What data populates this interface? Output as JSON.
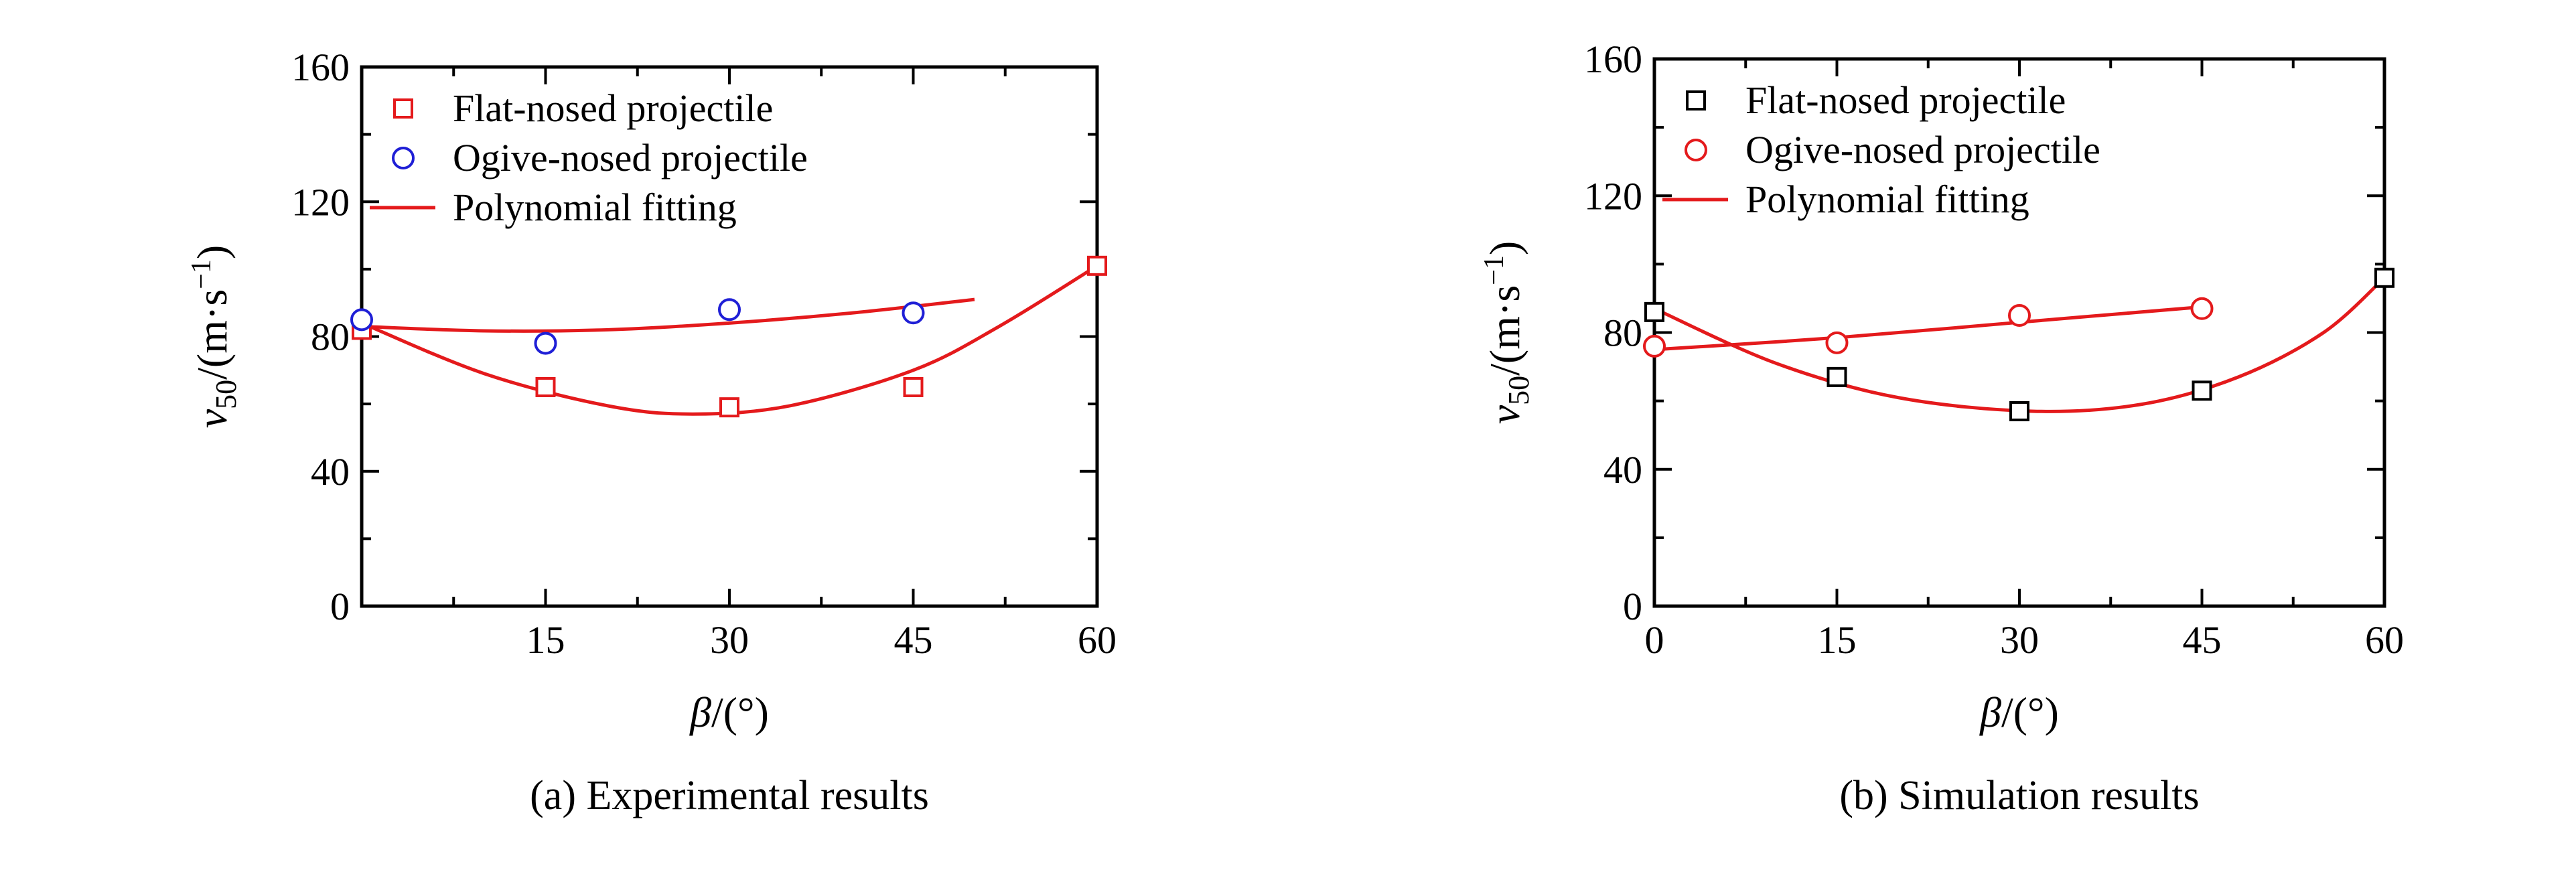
{
  "chart_data": [
    {
      "type": "scatter",
      "caption": "(a) Experimental results",
      "xlabel": {
        "var": "β",
        "unit": "/(°)"
      },
      "ylabel": {
        "var": "v",
        "sub": "50",
        "unit": "/(m·s",
        "sup": "−1",
        "close": ")"
      },
      "xlim": [
        0,
        60
      ],
      "ylim": [
        0,
        160
      ],
      "xticks": [
        15,
        30,
        45,
        60
      ],
      "yticks": [
        0,
        40,
        80,
        120,
        160
      ],
      "legend_position": "top-left",
      "series": [
        {
          "name": "Flat-nosed projectile",
          "marker": "square",
          "color": "#e41a1c",
          "points": [
            [
              0,
              82
            ],
            [
              15,
              65
            ],
            [
              30,
              59
            ],
            [
              45,
              65
            ],
            [
              60,
              101
            ]
          ]
        },
        {
          "name": "Ogive-nosed projectile",
          "marker": "circle",
          "color": "#1f1fd6",
          "points": [
            [
              0,
              85
            ],
            [
              15,
              78
            ],
            [
              30,
              88
            ],
            [
              45,
              87
            ]
          ]
        }
      ],
      "fits": [
        {
          "name": "Polynomial fitting",
          "color": "#e41a1c",
          "points": [
            [
              0,
              84
            ],
            [
              10,
              69
            ],
            [
              20,
              59.5
            ],
            [
              27,
              57
            ],
            [
              35,
              59.5
            ],
            [
              45,
              70
            ],
            [
              52,
              83
            ],
            [
              60,
              101
            ]
          ]
        },
        {
          "color": "#e41a1c",
          "points": [
            [
              0,
              83
            ],
            [
              10,
              81.7
            ],
            [
              20,
              82
            ],
            [
              30,
              84
            ],
            [
              40,
              87
            ],
            [
              50,
              91
            ]
          ]
        }
      ]
    },
    {
      "type": "scatter",
      "caption": "(b) Simulation results",
      "xlabel": {
        "var": "β",
        "unit": "/(°)"
      },
      "ylabel": {
        "var": "v",
        "sub": "50",
        "unit": "/(m·s",
        "sup": "−1",
        "close": ")"
      },
      "xlim": [
        0,
        60
      ],
      "ylim": [
        0,
        160
      ],
      "xticks": [
        0,
        15,
        30,
        45,
        60
      ],
      "yticks": [
        0,
        40,
        80,
        120,
        160
      ],
      "legend_position": "top-left",
      "series": [
        {
          "name": "Flat-nosed projectile",
          "marker": "square",
          "color": "#000000",
          "points": [
            [
              0,
              86
            ],
            [
              15,
              67
            ],
            [
              30,
              57
            ],
            [
              45,
              63
            ],
            [
              60,
              96
            ]
          ]
        },
        {
          "name": "Ogive-nosed projectile",
          "marker": "circle",
          "color": "#e41a1c",
          "points": [
            [
              0,
              76
            ],
            [
              15,
              77
            ],
            [
              30,
              85
            ],
            [
              45,
              87
            ]
          ]
        }
      ],
      "fits": [
        {
          "name": "Polynomial fitting",
          "color": "#e41a1c",
          "points": [
            [
              0,
              87
            ],
            [
              10,
              71
            ],
            [
              20,
              61
            ],
            [
              31,
              57
            ],
            [
              40,
              59
            ],
            [
              48,
              67
            ],
            [
              55,
              80
            ],
            [
              60,
              96
            ]
          ]
        },
        {
          "color": "#e41a1c",
          "points": [
            [
              0,
              75
            ],
            [
              15,
              78.5
            ],
            [
              30,
              83
            ],
            [
              45,
              87.5
            ]
          ]
        }
      ]
    }
  ]
}
